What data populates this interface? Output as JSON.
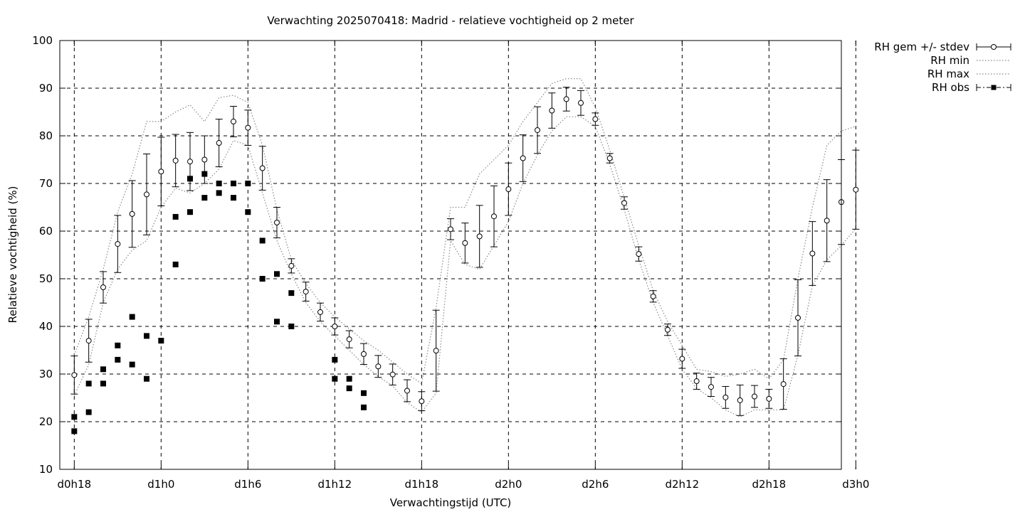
{
  "chart_data": {
    "type": "line",
    "title": "Verwachting 2025070418: Madrid - relatieve vochtigheid op 2 meter",
    "xlabel": "Verwachtingstijd (UTC)",
    "ylabel": "Relatieve vochtigheid (%)",
    "ylim": [
      10,
      100
    ],
    "xlim": [
      17,
      71
    ],
    "yticks": [
      10,
      20,
      30,
      40,
      50,
      60,
      70,
      80,
      90,
      100
    ],
    "xticks": [
      {
        "x": 18,
        "label": "d0h18"
      },
      {
        "x": 24,
        "label": "d1h0"
      },
      {
        "x": 30,
        "label": "d1h6"
      },
      {
        "x": 36,
        "label": "d1h12"
      },
      {
        "x": 42,
        "label": "d1h18"
      },
      {
        "x": 48,
        "label": "d2h0"
      },
      {
        "x": 54,
        "label": "d2h6"
      },
      {
        "x": 60,
        "label": "d2h12"
      },
      {
        "x": 66,
        "label": "d2h18"
      },
      {
        "x": 72,
        "label": "d3h0"
      }
    ],
    "grid": true,
    "legend_position": "outside-top-right",
    "legend": [
      {
        "label": "RH gem +/- stdev",
        "style": "errorbar-circle"
      },
      {
        "label": "RH min",
        "style": "dotted"
      },
      {
        "label": "RH max",
        "style": "dotted"
      },
      {
        "label": "RH obs",
        "style": "square-dashdot"
      }
    ],
    "series": [
      {
        "name": "RH gem +/- stdev",
        "x": [
          18,
          19,
          20,
          21,
          22,
          23,
          24,
          25,
          26,
          27,
          28,
          29,
          30,
          31,
          32,
          33,
          34,
          35,
          36,
          37,
          38,
          39,
          40,
          41,
          42,
          43,
          44,
          45,
          46,
          47,
          48,
          49,
          50,
          51,
          52,
          53,
          54,
          55,
          56,
          57,
          58,
          59,
          60,
          61,
          62,
          63,
          64,
          65,
          66,
          67,
          68,
          69,
          70,
          71,
          72
        ],
        "y": [
          29.8,
          37.0,
          48.2,
          57.3,
          63.6,
          67.7,
          72.5,
          74.8,
          74.6,
          75.0,
          78.5,
          83.0,
          81.7,
          73.2,
          61.8,
          52.7,
          47.3,
          43.0,
          40.0,
          37.3,
          34.2,
          31.6,
          29.9,
          26.5,
          24.3,
          34.9,
          60.4,
          57.5,
          58.9,
          63.1,
          68.8,
          75.3,
          81.2,
          85.3,
          87.7,
          86.9,
          83.5,
          75.3,
          65.9,
          55.2,
          46.3,
          39.3,
          33.2,
          28.5,
          27.3,
          25.1,
          24.5,
          25.3,
          24.8,
          27.9,
          41.8,
          55.3,
          62.2,
          66.1,
          68.7
        ],
        "stdev": [
          4.0,
          4.5,
          3.3,
          6.0,
          7.0,
          8.5,
          7.2,
          5.5,
          6.1,
          5.0,
          5.0,
          3.2,
          3.7,
          4.6,
          3.2,
          1.5,
          2.0,
          1.9,
          1.8,
          1.8,
          2.2,
          2.3,
          2.2,
          2.3,
          2.0,
          8.5,
          2.2,
          4.2,
          6.5,
          6.4,
          5.5,
          4.9,
          4.9,
          3.7,
          2.5,
          2.6,
          1.3,
          1.0,
          1.3,
          1.5,
          1.2,
          1.2,
          2.0,
          1.7,
          2.0,
          2.3,
          3.2,
          2.3,
          2.0,
          5.3,
          8.0,
          6.7,
          8.6,
          8.9,
          8.3
        ]
      },
      {
        "name": "RH min",
        "x": [
          18,
          19,
          20,
          21,
          22,
          23,
          24,
          25,
          26,
          27,
          28,
          29,
          30,
          31,
          32,
          33,
          34,
          35,
          36,
          37,
          38,
          39,
          40,
          41,
          42,
          43,
          44,
          45,
          46,
          47,
          48,
          49,
          50,
          51,
          52,
          53,
          54,
          55,
          56,
          57,
          58,
          59,
          60,
          61,
          62,
          63,
          64,
          65,
          66,
          67,
          68,
          69,
          70,
          71,
          72
        ],
        "y": [
          25.5,
          32.0,
          45.0,
          52.0,
          56.0,
          58.0,
          65.0,
          69.0,
          68.0,
          70.0,
          73.0,
          79.0,
          78.0,
          68.0,
          58.0,
          51.0,
          45.0,
          41.0,
          38.0,
          35.0,
          32.0,
          29.5,
          27.5,
          24.0,
          22.0,
          26.0,
          58.0,
          53.0,
          52.0,
          57.0,
          62.0,
          70.0,
          76.0,
          81.0,
          84.0,
          84.0,
          82.0,
          74.0,
          64.5,
          54.0,
          45.0,
          38.0,
          31.0,
          27.0,
          25.0,
          22.5,
          21.0,
          22.5,
          22.5,
          22.5,
          34.0,
          48.5,
          54.0,
          57.0,
          60.5
        ]
      },
      {
        "name": "RH max",
        "x": [
          18,
          19,
          20,
          21,
          22,
          23,
          24,
          25,
          26,
          27,
          28,
          29,
          30,
          31,
          32,
          33,
          34,
          35,
          36,
          37,
          38,
          39,
          40,
          41,
          42,
          43,
          44,
          45,
          46,
          47,
          48,
          49,
          50,
          51,
          52,
          53,
          54,
          55,
          56,
          57,
          58,
          59,
          60,
          61,
          62,
          63,
          64,
          65,
          66,
          67,
          68,
          69,
          70,
          71,
          72
        ],
        "y": [
          34.0,
          42.0,
          52.0,
          64.0,
          72.0,
          83.0,
          83.0,
          85.0,
          86.5,
          83.0,
          88.0,
          88.5,
          87.0,
          78.0,
          64.5,
          54.0,
          49.0,
          45.0,
          42.0,
          39.5,
          37.0,
          35.0,
          32.5,
          30.0,
          28.0,
          44.0,
          65.0,
          65.0,
          72.0,
          75.0,
          78.0,
          83.0,
          87.0,
          91.0,
          92.0,
          92.0,
          86.0,
          77.0,
          67.0,
          57.0,
          47.5,
          41.0,
          36.0,
          31.0,
          30.5,
          29.5,
          30.0,
          31.0,
          29.0,
          33.0,
          50.0,
          65.0,
          78.0,
          81.0,
          82.0
        ]
      },
      {
        "name": "RH obs",
        "points": [
          [
            18,
            21
          ],
          [
            18,
            18
          ],
          [
            19,
            28
          ],
          [
            19,
            22
          ],
          [
            20,
            31
          ],
          [
            20,
            28
          ],
          [
            21,
            36
          ],
          [
            21,
            33
          ],
          [
            22,
            42
          ],
          [
            22,
            32
          ],
          [
            23,
            38
          ],
          [
            23,
            29
          ],
          [
            24,
            37
          ],
          [
            25,
            63
          ],
          [
            25,
            53
          ],
          [
            26,
            71
          ],
          [
            26,
            64
          ],
          [
            27,
            72
          ],
          [
            27,
            67
          ],
          [
            28,
            70
          ],
          [
            28,
            68
          ],
          [
            29,
            70
          ],
          [
            29,
            67
          ],
          [
            30,
            70
          ],
          [
            30,
            64
          ],
          [
            31,
            58
          ],
          [
            31,
            50
          ],
          [
            32,
            51
          ],
          [
            32,
            41
          ],
          [
            33,
            47
          ],
          [
            33,
            40
          ],
          [
            36,
            33
          ],
          [
            36,
            29
          ],
          [
            37,
            29
          ],
          [
            37,
            27
          ],
          [
            38,
            26
          ],
          [
            38,
            23
          ]
        ]
      }
    ]
  }
}
